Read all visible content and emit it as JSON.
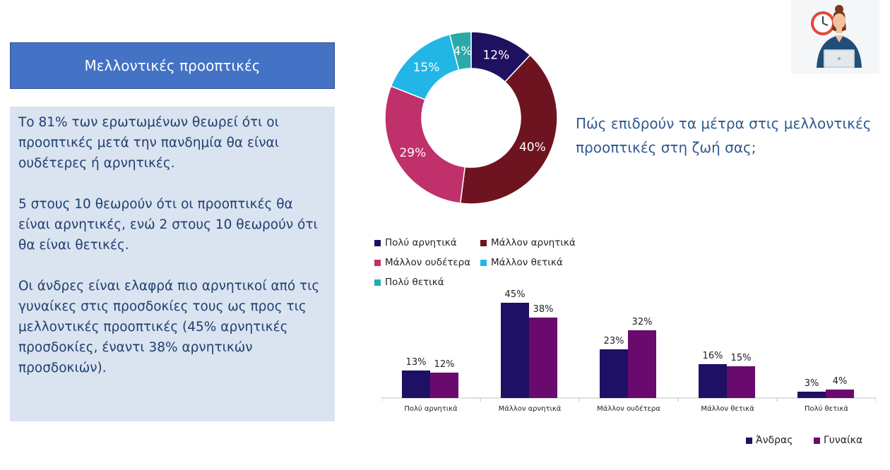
{
  "header": {
    "title": "Μελλοντικές προοπτικές"
  },
  "summary": {
    "paragraphs": [
      "Το 81% των ερωτωμένων θεωρεί ότι οι προοπτικές μετά την πανδημία θα είναι ουδέτερες ή αρνητικές.",
      "5 στους 10 θεωρούν ότι οι προοπτικές θα είναι αρνητικές, ενώ 2 στους 10 θεωρούν ότι θα είναι θετικές.",
      "Οι άνδρες είναι ελαφρά πιο αρνητικοί από τις γυναίκες στις προσδοκίες τους ως προς τις μελλοντικές προοπτικές (45% αρνητικές προσδοκίες, έναντι 38% αρνητικών προσδοκιών)."
    ]
  },
  "question": {
    "text": "Πώς επιδρούν τα μέτρα στις μελλοντικές  προοπτικές στη ζωή σας;"
  },
  "illustration": {
    "icon": "woman-at-laptop-with-clock-icon"
  },
  "chart_data": [
    {
      "type": "pie",
      "donut": true,
      "labels": [
        "Πολύ αρνητικά",
        "Μάλλον αρνητικά",
        "Μάλλον ουδέτερα",
        "Μάλλον θετικά",
        "Πολύ θετικά"
      ],
      "values": [
        12,
        40,
        29,
        15,
        4
      ],
      "value_labels": [
        "12%",
        "40%",
        "29%",
        "15%",
        "4%"
      ],
      "colors": [
        "#201060",
        "#6e1420",
        "#c0306a",
        "#21b6e6",
        "#2aa9a9"
      ],
      "legend_position": "bottom"
    },
    {
      "type": "bar",
      "categories": [
        "Πολύ αρνητικά",
        "Μάλλον αρνητικά",
        "Μάλλον ουδέτερα",
        "Μάλλον θετικά",
        "Πολύ θετικά"
      ],
      "series": [
        {
          "name": "Άνδρας",
          "values": [
            13,
            45,
            23,
            16,
            3
          ],
          "value_labels": [
            "13%",
            "45%",
            "23%",
            "16%",
            "3%"
          ],
          "color": "#1e1064"
        },
        {
          "name": "Γυναίκα",
          "values": [
            12,
            38,
            32,
            15,
            4
          ],
          "value_labels": [
            "12%",
            "38%",
            "32%",
            "15%",
            "4%"
          ],
          "color": "#6a0a6e"
        }
      ],
      "ylim": [
        0,
        50
      ],
      "grid": false,
      "legend_position": "bottom-right"
    }
  ]
}
